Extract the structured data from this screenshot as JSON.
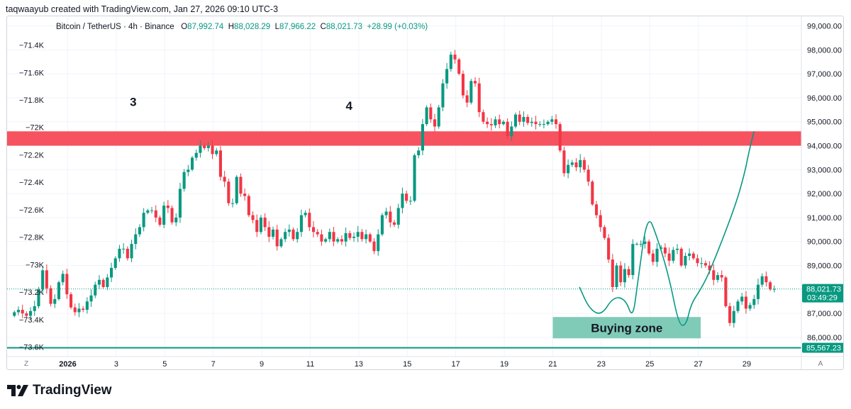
{
  "credit": "taqwaayub created with TradingView.com, Jan 27, 2026 09:10 UTC-3",
  "brand": "TradingView",
  "legend": {
    "symbol": "Bitcoin / TetherUS · 4h · Binance",
    "o_label": "O",
    "o": "87,992.74",
    "h_label": "H",
    "h": "88,028.29",
    "l_label": "L",
    "l": "87,966.22",
    "c_label": "C",
    "c": "88,021.73",
    "change": "+28.99 (+0.03%)"
  },
  "colors": {
    "up": "#089981",
    "down": "#f23645",
    "zone_red": "#f7525f",
    "zone_green": "#80cbb8",
    "line": "#089981"
  },
  "corner_left": "Z",
  "corner_right": "A",
  "chart_data": {
    "type": "candlestick",
    "title": "Bitcoin / TetherUS · 4h · Binance",
    "right_axis": {
      "range": [
        85200,
        99400
      ],
      "ticks": [
        "99,000.00",
        "98,000.00",
        "97,000.00",
        "96,000.00",
        "95,000.00",
        "94,000.00",
        "93,000.00",
        "92,000.00",
        "91,000.00",
        "90,000.00",
        "89,000.00",
        "87,000.00",
        "86,000.00"
      ],
      "tick_values": [
        99000,
        98000,
        97000,
        96000,
        95000,
        94000,
        93000,
        92000,
        91000,
        90000,
        89000,
        87000,
        86000
      ]
    },
    "left_axis": {
      "ticks": [
        "−71.4K",
        "−71.6K",
        "−71.8K",
        "−72K",
        "−72.2K",
        "−72.4K",
        "−72.6K",
        "−72.8K",
        "−73K",
        "−73.2K",
        "−73.4K",
        "−73.6K"
      ],
      "tick_values": [
        -71.4,
        -71.6,
        -71.8,
        -72.0,
        -72.2,
        -72.4,
        -72.6,
        -72.8,
        -73.0,
        -73.2,
        -73.4,
        -73.6
      ]
    },
    "x_axis": {
      "labels": [
        "2026",
        "3",
        "5",
        "7",
        "9",
        "11",
        "13",
        "15",
        "17",
        "19",
        "21",
        "23",
        "25",
        "27",
        "29"
      ],
      "positions": [
        -0.5,
        1.5,
        3.5,
        5.5,
        7.5,
        9.5,
        11.5,
        13.5,
        15.5,
        17.5,
        19.5,
        21.5,
        23.5,
        25.5,
        27.5
      ],
      "start_day": -3.0,
      "end_day": 29.75
    },
    "series": [
      {
        "name": "BTCUSDT",
        "close": [
          87050,
          87150,
          87000,
          86900,
          87100,
          87300,
          88000,
          88800,
          88050,
          87400,
          87600,
          88300,
          88650,
          87800,
          87250,
          87050,
          87200,
          87150,
          87500,
          87750,
          88200,
          88400,
          88100,
          88500,
          88900,
          89300,
          89700,
          89700,
          89300,
          89900,
          90300,
          90600,
          91200,
          91300,
          91300,
          91000,
          90700,
          91500,
          91400,
          90800,
          91000,
          92200,
          92900,
          93000,
          93500,
          93700,
          94000,
          93900,
          94000,
          93650,
          93800,
          92700,
          92500,
          91600,
          91600,
          92700,
          92000,
          91900,
          91100,
          90900,
          90400,
          91000,
          90600,
          90200,
          90500,
          89800,
          90100,
          90400,
          90500,
          90100,
          90400,
          91100,
          91200,
          90600,
          90400,
          90300,
          90000,
          90100,
          90400,
          90000,
          90100,
          90000,
          90350,
          90150,
          90200,
          90400,
          90100,
          90300,
          90000,
          89600,
          90300,
          91100,
          91250,
          90800,
          90700,
          91400,
          92000,
          91700,
          91700,
          93600,
          93800,
          94900,
          95600,
          95100,
          94800,
          95600,
          96600,
          97200,
          97800,
          97600,
          97000,
          96100,
          95800,
          96700,
          96600,
          95400,
          95000,
          94900,
          94850,
          95100,
          94900,
          95000,
          94400,
          94800,
          95300,
          95000,
          95200,
          94950,
          95000,
          94900,
          94900,
          94900,
          95000,
          95100,
          94900,
          93800,
          92850,
          93200,
          93300,
          93100,
          93400,
          93000,
          92500,
          91550,
          91100,
          90600,
          90150,
          89250,
          88100,
          89000,
          88300,
          88850,
          88600,
          89900,
          89900,
          89900,
          90000,
          89500,
          89150,
          89700,
          89750,
          89500,
          89200,
          89650,
          89700,
          89000,
          89400,
          89500,
          89300,
          89100,
          89100,
          89000,
          88800,
          88400,
          88600,
          88500,
          87300,
          86600,
          87100,
          87500,
          87700,
          87200,
          87350,
          87600,
          88200,
          88550,
          88300,
          88000,
          88021.73
        ]
      }
    ],
    "price_tags": [
      {
        "value": 88021.73,
        "label": "88,021.73",
        "countdown": "03:49:29"
      },
      {
        "value": 85567.23,
        "label": "85,567.23"
      }
    ],
    "zones": [
      {
        "name": "resistance-zone",
        "from_price": 94000,
        "to_price": 94600,
        "from_day": -3.0,
        "to_day": 29.75
      },
      {
        "name": "buying-zone",
        "label": "Buying zone",
        "from_price": 85960,
        "to_price": 86850,
        "from_day": 19.5,
        "to_day": 25.6
      }
    ],
    "horizontal_line": {
      "value": 85567.23
    },
    "annotations": [
      {
        "text": "3",
        "day": 2.2,
        "price": 95660
      },
      {
        "text": "4",
        "day": 11.1,
        "price": 95490
      }
    ],
    "projection_path": [
      [
        20.6,
        88100
      ],
      [
        21.0,
        87200
      ],
      [
        21.5,
        86900
      ],
      [
        22.0,
        87700
      ],
      [
        22.5,
        87600
      ],
      [
        22.8,
        86750
      ],
      [
        23.0,
        88300
      ],
      [
        23.4,
        91200
      ],
      [
        23.8,
        90200
      ],
      [
        24.3,
        88500
      ],
      [
        24.7,
        86500
      ],
      [
        25.0,
        86500
      ],
      [
        25.2,
        87400
      ],
      [
        25.6,
        88000
      ],
      [
        26.0,
        88800
      ],
      [
        27.0,
        91400
      ],
      [
        27.4,
        92800
      ],
      [
        27.6,
        93800
      ],
      [
        27.8,
        94600
      ]
    ]
  }
}
